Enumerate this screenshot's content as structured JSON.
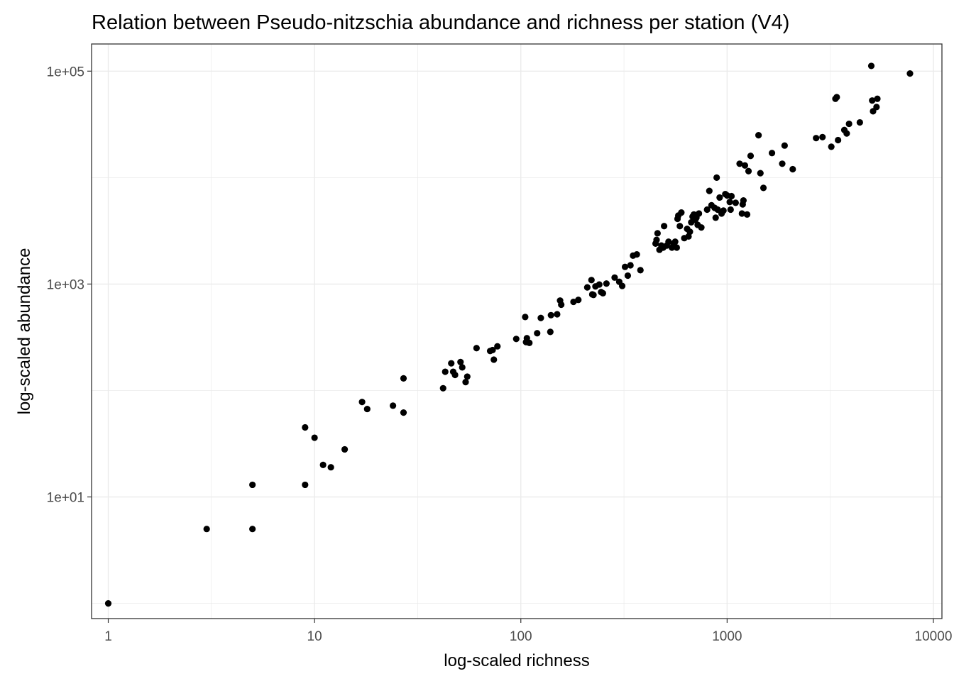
{
  "chart_data": {
    "type": "scatter",
    "title": "Relation between Pseudo-nitzschia abundance and richness per station (V4)",
    "xlabel": "log-scaled richness",
    "ylabel": "log-scaled abundance",
    "x_scale": "log10",
    "y_scale": "log10",
    "xlim": [
      0.83,
      11000
    ],
    "ylim": [
      0.72,
      180000
    ],
    "x_ticks": [
      {
        "value": 1,
        "label": "1"
      },
      {
        "value": 10,
        "label": "10"
      },
      {
        "value": 100,
        "label": "100"
      },
      {
        "value": 1000,
        "label": "1000"
      },
      {
        "value": 10000,
        "label": "10000"
      }
    ],
    "y_ticks": [
      {
        "value": 10,
        "label": "1e+01"
      },
      {
        "value": 1000,
        "label": "1e+03"
      },
      {
        "value": 100000,
        "label": "1e+05"
      }
    ],
    "grid": true,
    "colors": {
      "point": "#000000",
      "grid": "#ebebeb",
      "panel_border": "#333333",
      "tick_label": "#4d4d4d"
    },
    "points": [
      [
        1,
        1
      ],
      [
        3,
        5
      ],
      [
        5,
        5
      ],
      [
        5,
        13
      ],
      [
        9,
        13
      ],
      [
        9,
        45
      ],
      [
        10,
        36
      ],
      [
        11,
        20
      ],
      [
        12,
        19
      ],
      [
        14,
        28
      ],
      [
        17,
        78
      ],
      [
        18,
        67
      ],
      [
        24,
        72
      ],
      [
        27,
        62
      ],
      [
        27,
        130
      ],
      [
        42,
        105
      ],
      [
        43,
        150
      ],
      [
        46,
        180
      ],
      [
        47,
        150
      ],
      [
        48,
        140
      ],
      [
        51,
        185
      ],
      [
        52,
        165
      ],
      [
        54,
        120
      ],
      [
        55,
        135
      ],
      [
        61,
        250
      ],
      [
        71,
        235
      ],
      [
        73,
        240
      ],
      [
        74,
        195
      ],
      [
        77,
        260
      ],
      [
        95,
        305
      ],
      [
        105,
        490
      ],
      [
        106,
        285
      ],
      [
        107,
        310
      ],
      [
        110,
        280
      ],
      [
        120,
        345
      ],
      [
        125,
        480
      ],
      [
        139,
        355
      ],
      [
        140,
        510
      ],
      [
        150,
        520
      ],
      [
        155,
        700
      ],
      [
        157,
        640
      ],
      [
        180,
        680
      ],
      [
        190,
        710
      ],
      [
        210,
        930
      ],
      [
        220,
        1090
      ],
      [
        222,
        800
      ],
      [
        225,
        790
      ],
      [
        230,
        950
      ],
      [
        240,
        990
      ],
      [
        245,
        840
      ],
      [
        250,
        820
      ],
      [
        260,
        1010
      ],
      [
        285,
        1150
      ],
      [
        300,
        1050
      ],
      [
        310,
        960
      ],
      [
        320,
        1450
      ],
      [
        330,
        1200
      ],
      [
        340,
        1500
      ],
      [
        350,
        1850
      ],
      [
        365,
        1900
      ],
      [
        380,
        1350
      ],
      [
        450,
        2400
      ],
      [
        455,
        2600
      ],
      [
        460,
        3000
      ],
      [
        470,
        2100
      ],
      [
        480,
        2300
      ],
      [
        490,
        2200
      ],
      [
        495,
        3500
      ],
      [
        510,
        2300
      ],
      [
        520,
        2500
      ],
      [
        540,
        2200
      ],
      [
        550,
        2400
      ],
      [
        560,
        2500
      ],
      [
        570,
        2200
      ],
      [
        575,
        4100
      ],
      [
        580,
        4400
      ],
      [
        590,
        3500
      ],
      [
        600,
        4700
      ],
      [
        620,
        2700
      ],
      [
        640,
        3300
      ],
      [
        650,
        2800
      ],
      [
        660,
        3100
      ],
      [
        670,
        3800
      ],
      [
        680,
        4300
      ],
      [
        690,
        4500
      ],
      [
        700,
        4000
      ],
      [
        710,
        4200
      ],
      [
        720,
        3600
      ],
      [
        730,
        4600
      ],
      [
        750,
        3400
      ],
      [
        800,
        5000
      ],
      [
        820,
        7500
      ],
      [
        840,
        5500
      ],
      [
        870,
        5200
      ],
      [
        880,
        4200
      ],
      [
        890,
        10000
      ],
      [
        900,
        5000
      ],
      [
        920,
        6500
      ],
      [
        940,
        4600
      ],
      [
        960,
        4900
      ],
      [
        980,
        7000
      ],
      [
        1000,
        6800
      ],
      [
        1030,
        5900
      ],
      [
        1040,
        5000
      ],
      [
        1050,
        6700
      ],
      [
        1100,
        5800
      ],
      [
        1150,
        13500
      ],
      [
        1180,
        4600
      ],
      [
        1190,
        5600
      ],
      [
        1200,
        6100
      ],
      [
        1220,
        13000
      ],
      [
        1250,
        4500
      ],
      [
        1270,
        11500
      ],
      [
        1300,
        16000
      ],
      [
        1420,
        25000
      ],
      [
        1450,
        11000
      ],
      [
        1500,
        8000
      ],
      [
        1650,
        17000
      ],
      [
        1850,
        13500
      ],
      [
        1900,
        20000
      ],
      [
        2080,
        12000
      ],
      [
        2700,
        23500
      ],
      [
        2900,
        24000
      ],
      [
        3200,
        19500
      ],
      [
        3350,
        55000
      ],
      [
        3400,
        57000
      ],
      [
        3450,
        22500
      ],
      [
        3700,
        28000
      ],
      [
        3800,
        26000
      ],
      [
        3900,
        32000
      ],
      [
        4400,
        33000
      ],
      [
        5000,
        112000
      ],
      [
        5050,
        53000
      ],
      [
        5100,
        42000
      ],
      [
        5300,
        46000
      ],
      [
        5350,
        55000
      ],
      [
        7700,
        95000
      ]
    ]
  }
}
